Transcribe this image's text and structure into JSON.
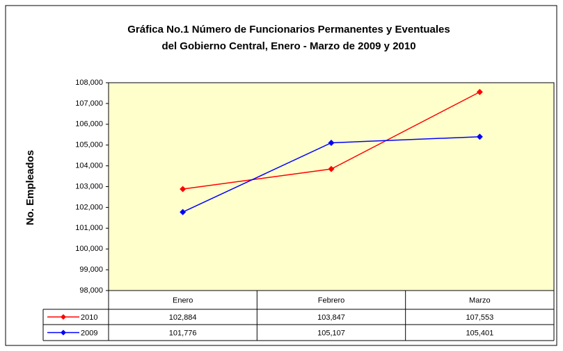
{
  "chart_data": {
    "type": "line",
    "title": "Gráfica No.1  Número de Funcionarios Permanentes y Eventuales",
    "subtitle": "del Gobierno Central, Enero - Marzo de 2009 y 2010",
    "y_label": "No. Empleados",
    "categories": [
      "Enero",
      "Febrero",
      "Marzo"
    ],
    "series": [
      {
        "name": "2010",
        "color": "#ff0000",
        "values": [
          102884,
          103847,
          107553
        ],
        "value_labels": [
          "102,884",
          "103,847",
          "107,553"
        ]
      },
      {
        "name": "2009",
        "color": "#0000ff",
        "values": [
          101776,
          105107,
          105401
        ],
        "value_labels": [
          "101,776",
          "105,107",
          "105,401"
        ]
      }
    ],
    "ylim": [
      98000,
      108000
    ],
    "yticks": [
      {
        "value": 98000,
        "label": "98,000"
      },
      {
        "value": 99000,
        "label": "99,000"
      },
      {
        "value": 100000,
        "label": "100,000"
      },
      {
        "value": 101000,
        "label": "101,000"
      },
      {
        "value": 102000,
        "label": "102,000"
      },
      {
        "value": 103000,
        "label": "103,000"
      },
      {
        "value": 104000,
        "label": "104,000"
      },
      {
        "value": 105000,
        "label": "105,000"
      },
      {
        "value": 106000,
        "label": "106,000"
      },
      {
        "value": 107000,
        "label": "107,000"
      },
      {
        "value": 108000,
        "label": "108,000"
      }
    ],
    "grid": false,
    "plot_background": "#ffffcc"
  }
}
